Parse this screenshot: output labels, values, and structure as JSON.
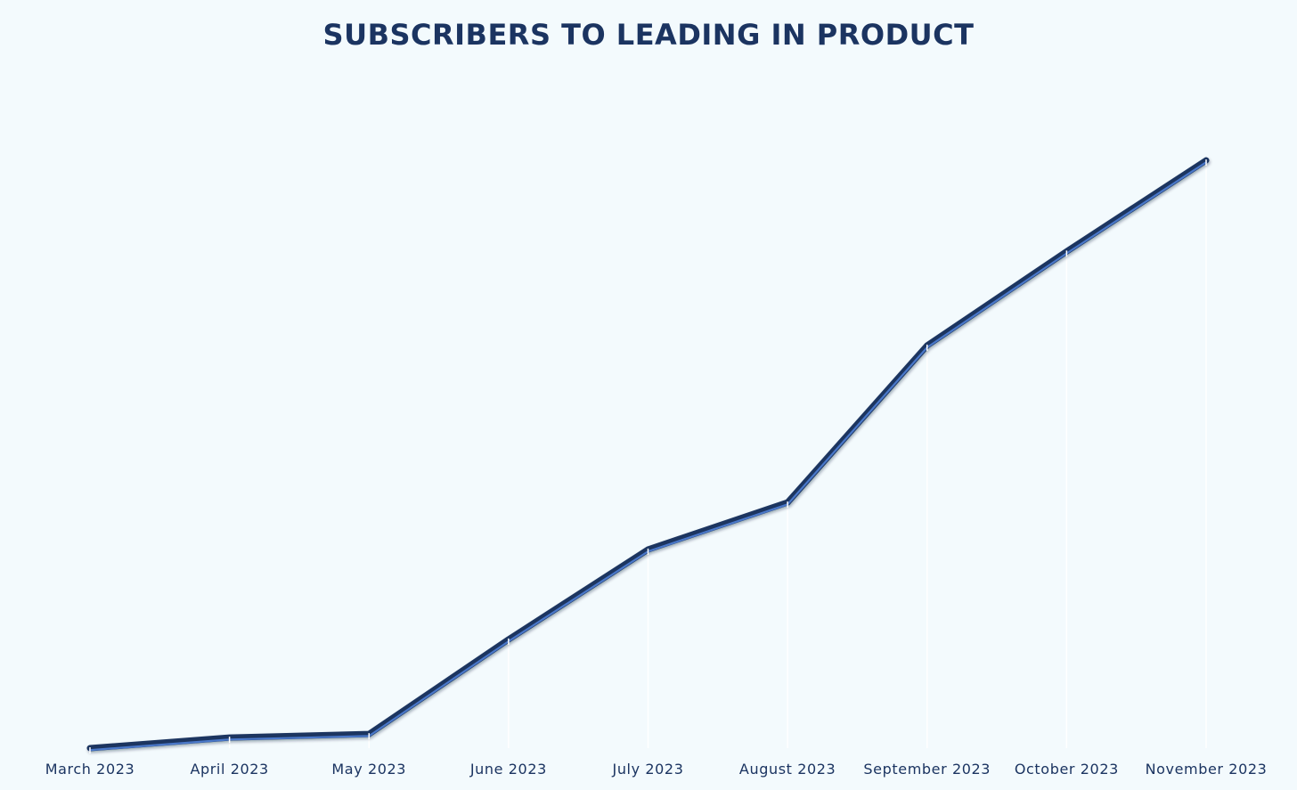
{
  "chart_data": {
    "type": "line",
    "title": "SUBSCRIBERS TO LEADING IN PRODUCT",
    "xlabel": "",
    "ylabel": "",
    "categories": [
      "March 2023",
      "April 2023",
      "May 2023",
      "June 2023",
      "July 2023",
      "August 2023",
      "September 2023",
      "October 2023",
      "November 2023"
    ],
    "series": [
      {
        "name": "",
        "values": [
          0,
          18,
          24,
          185,
          338,
          418,
          685,
          845,
          1000
        ]
      }
    ],
    "ylim": [
      0,
      1000
    ],
    "grid": false,
    "legend": "none",
    "y_axis_visible": false,
    "colors": {
      "background": "#f3fafd",
      "line": "#1b3461",
      "line_highlight": "#4a78c9",
      "title": "#1b3461",
      "tick_label": "#1b3461"
    }
  }
}
